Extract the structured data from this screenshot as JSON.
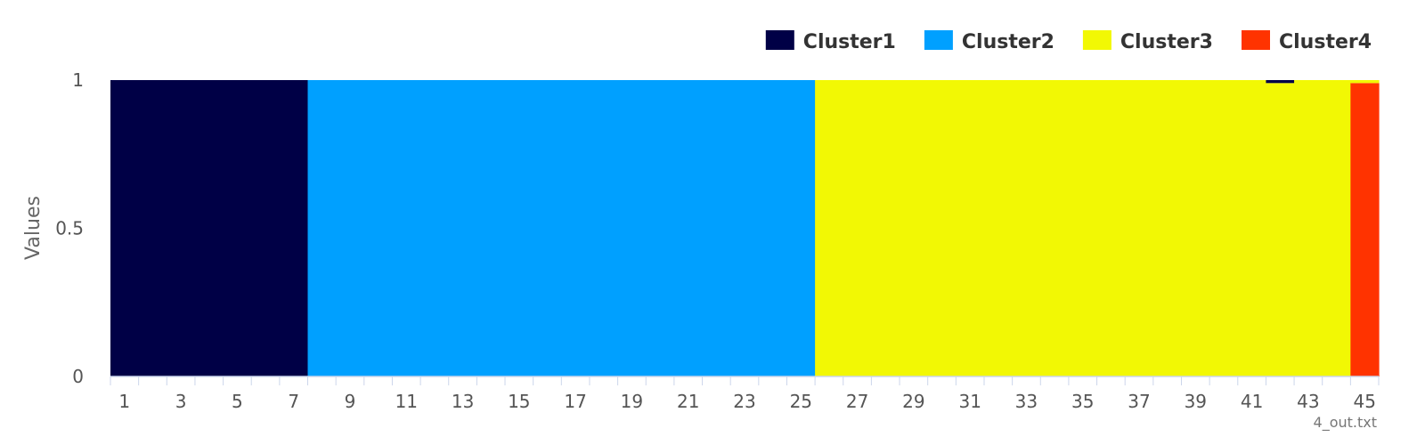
{
  "chart_data": {
    "type": "bar",
    "stacked": true,
    "ylabel": "Values",
    "ylim": [
      0,
      1
    ],
    "yticks": [
      0,
      0.5,
      1
    ],
    "x_tick_labels": [
      "1",
      "3",
      "5",
      "7",
      "9",
      "11",
      "13",
      "15",
      "17",
      "19",
      "21",
      "23",
      "25",
      "27",
      "29",
      "31",
      "33",
      "35",
      "37",
      "39",
      "41",
      "43",
      "45"
    ],
    "categories": [
      "1",
      "2",
      "3",
      "4",
      "5",
      "6",
      "7",
      "8",
      "9",
      "10",
      "11",
      "12",
      "13",
      "14",
      "15",
      "16",
      "17",
      "18",
      "19",
      "20",
      "21",
      "22",
      "23",
      "24",
      "25",
      "26",
      "27",
      "28",
      "29",
      "30",
      "31",
      "32",
      "33",
      "34",
      "35",
      "36",
      "37",
      "38",
      "39",
      "40",
      "41",
      "42",
      "43",
      "44",
      "45"
    ],
    "legend_position": "top-right",
    "series": [
      {
        "name": "Cluster1",
        "color": "#000046",
        "values": [
          1,
          1,
          1,
          1,
          1,
          1,
          1,
          0,
          0,
          0,
          0,
          0,
          0,
          0,
          0,
          0,
          0,
          0,
          0,
          0,
          0,
          0,
          0,
          0,
          0,
          0,
          0,
          0,
          0,
          0,
          0,
          0,
          0,
          0,
          0,
          0,
          0,
          0,
          0,
          0,
          0,
          0.01,
          0,
          0,
          0
        ]
      },
      {
        "name": "Cluster2",
        "color": "#00A0FF",
        "values": [
          0,
          0,
          0,
          0,
          0,
          0,
          0,
          1,
          1,
          1,
          1,
          1,
          1,
          1,
          1,
          1,
          1,
          1,
          1,
          1,
          1,
          1,
          1,
          1,
          1,
          0,
          0,
          0,
          0,
          0,
          0,
          0,
          0,
          0,
          0,
          0,
          0,
          0,
          0,
          0,
          0,
          0,
          0,
          0,
          0
        ]
      },
      {
        "name": "Cluster3",
        "color": "#F2F804",
        "values": [
          0,
          0,
          0,
          0,
          0,
          0,
          0,
          0,
          0,
          0,
          0,
          0,
          0,
          0,
          0,
          0,
          0,
          0,
          0,
          0,
          0,
          0,
          0,
          0,
          0,
          1,
          1,
          1,
          1,
          1,
          1,
          1,
          1,
          1,
          1,
          1,
          1,
          1,
          1,
          1,
          1,
          0.99,
          1,
          1,
          0.01
        ]
      },
      {
        "name": "Cluster4",
        "color": "#FF3300",
        "values": [
          0,
          0,
          0,
          0,
          0,
          0,
          0,
          0,
          0,
          0,
          0,
          0,
          0,
          0,
          0,
          0,
          0,
          0,
          0,
          0,
          0,
          0,
          0,
          0,
          0,
          0,
          0,
          0,
          0,
          0,
          0,
          0,
          0,
          0,
          0,
          0,
          0,
          0,
          0,
          0,
          0,
          0,
          0,
          0,
          0.99
        ]
      }
    ],
    "credit": "4_out.txt"
  }
}
